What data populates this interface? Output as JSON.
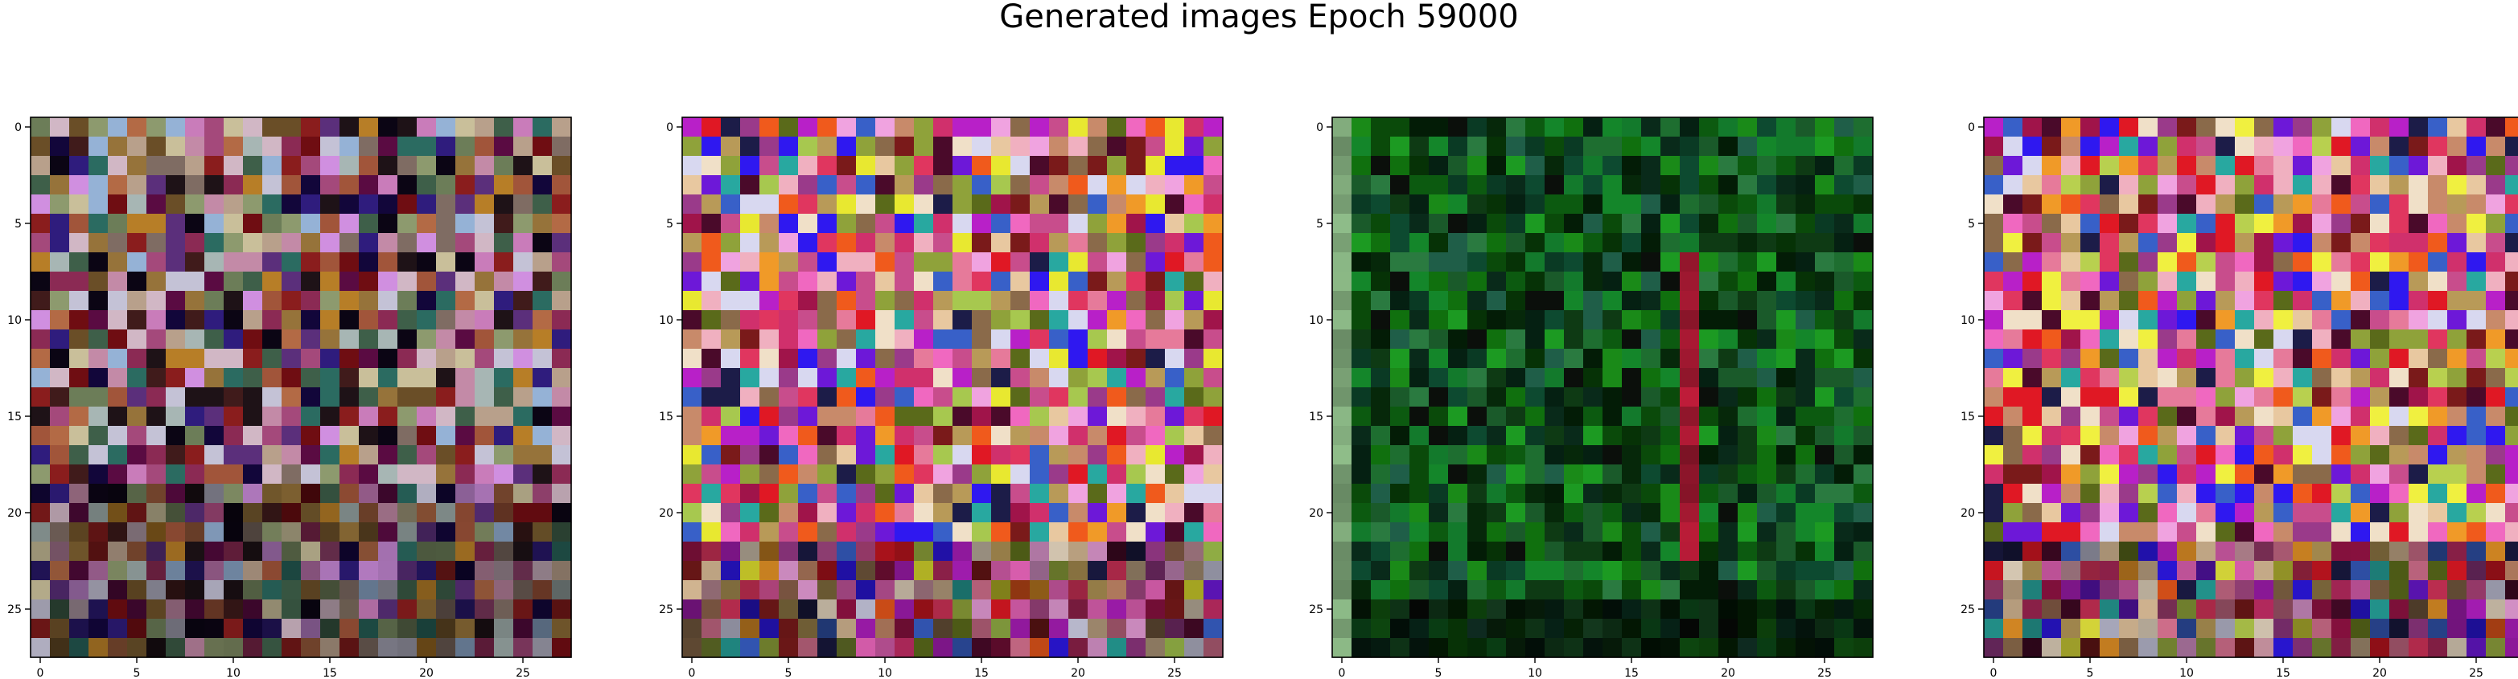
{
  "figure": {
    "title": "Generated images Epoch 59000"
  },
  "chart_data": {
    "type": "heatmap",
    "title": "Generated images Epoch 59000",
    "xlabel": "",
    "ylabel": "",
    "xlim": [
      -0.5,
      27.5
    ],
    "ylim": [
      27.5,
      -0.5
    ],
    "grid": false,
    "panels": [
      {
        "name": "",
        "grid_size": [
          28,
          28
        ],
        "xticks": [
          0,
          5,
          10,
          15,
          20,
          25
        ],
        "yticks": [
          0,
          5,
          10,
          15,
          20,
          25
        ],
        "palette": [
          "#c38aa7",
          "#b8a08b",
          "#8d9a6e",
          "#c97cba",
          "#7f6c63",
          "#a7b6b4",
          "#a4497b",
          "#6c7d58",
          "#d1b7c5",
          "#3e5f49",
          "#6a4e27",
          "#1e1217",
          "#2f1c7d",
          "#5a0b42",
          "#b77e27",
          "#8a1d1d",
          "#d08fe0",
          "#2b6b61",
          "#a1553a",
          "#5b2f7b",
          "#0b0514",
          "#95b2d6",
          "#6f0d12",
          "#c9bf9a",
          "#401b1b",
          "#b36a45",
          "#8b2a54",
          "#12063a",
          "#c4c2d6",
          "#96733a"
        ],
        "seed": 11,
        "rows_from_bottom_darker": 9
      },
      {
        "name": "",
        "grid_size": [
          28,
          28
        ],
        "xticks": [
          0,
          5,
          10,
          15,
          20,
          25
        ],
        "yticks": [
          0,
          5,
          10,
          15,
          20,
          25
        ],
        "palette": [
          "#e0365f",
          "#c84d8c",
          "#8fa23a",
          "#a7c84f",
          "#f0b0c0",
          "#e67a9a",
          "#f0a3e0",
          "#b820c8",
          "#6d18d8",
          "#2f18f0",
          "#e01824",
          "#f09a28",
          "#e8e830",
          "#f0e0c8",
          "#c88a6a",
          "#9a3a8a",
          "#4a0a2a",
          "#1c1c48",
          "#d8d8f0",
          "#8a6a4a",
          "#28a8a0",
          "#f05a1c",
          "#a0144a",
          "#d0306c",
          "#5a6a1a",
          "#b89a58",
          "#f068c0",
          "#3860c8",
          "#7a1a1a",
          "#e8c8a0"
        ],
        "seed": 23,
        "rows_from_bottom_darker": 6
      },
      {
        "name": "",
        "grid_size": [
          28,
          28
        ],
        "xticks": [
          0,
          5,
          10,
          15,
          20,
          25
        ],
        "yticks": [
          0,
          5,
          10,
          15,
          20,
          25
        ],
        "palette": [
          "#0a4a0a",
          "#0c5a10",
          "#10700e",
          "#1a8a18",
          "#063206",
          "#031c06",
          "#0a3a24",
          "#137a2c",
          "#1e6e30",
          "#052012",
          "#0b0f0b",
          "#2a7a40",
          "#1a5a2a",
          "#0e3a14",
          "#06280a",
          "#14862a",
          "#1c9a22",
          "#092a1a",
          "#0d4a30",
          "#1f5e48"
        ],
        "seed": 37,
        "accent_column": 18,
        "accent_color": "#a01830",
        "left_column_color": "#7fa87a"
      },
      {
        "name": "",
        "grid_size": [
          28,
          28
        ],
        "xticks": [
          0,
          5,
          10,
          15,
          20,
          25
        ],
        "yticks": [
          0,
          5,
          10,
          15,
          20,
          25
        ],
        "palette": [
          "#e0365f",
          "#c84d8c",
          "#8fa23a",
          "#b8d04f",
          "#f0b0c0",
          "#e67a9a",
          "#f0a3e0",
          "#b820c8",
          "#6d18d8",
          "#2f18f0",
          "#e01824",
          "#f09a28",
          "#f0f040",
          "#f0e0c8",
          "#c88a6a",
          "#9a3a8a",
          "#4a0a2a",
          "#1c1c48",
          "#d8d8f0",
          "#8a6a4a",
          "#28a8a0",
          "#f05a1c",
          "#a0144a",
          "#d0306c",
          "#5a6a1a",
          "#b89a58",
          "#f068c0",
          "#3860c8",
          "#7a1a1a",
          "#e8c8a0"
        ],
        "seed": 51,
        "rows_from_bottom_darker": 6
      }
    ]
  }
}
